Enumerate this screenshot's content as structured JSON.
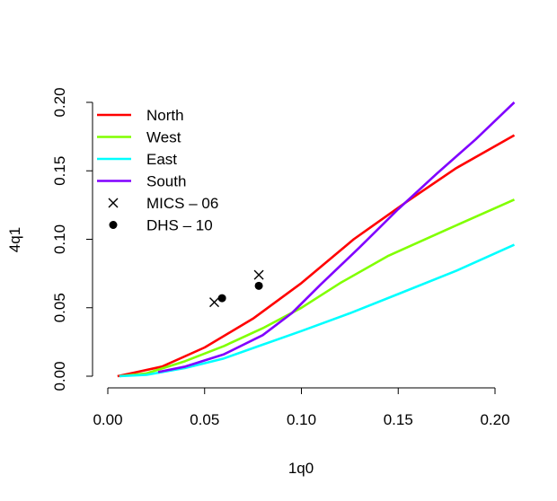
{
  "chart_data": {
    "type": "line",
    "title": "",
    "xlabel": "1q0",
    "ylabel": "4q1",
    "xlim": [
      0.0,
      0.21
    ],
    "ylim": [
      0.0,
      0.2
    ],
    "x_ticks": [
      "0.00",
      "0.05",
      "0.10",
      "0.15",
      "0.20"
    ],
    "y_ticks": [
      "0.00",
      "0.05",
      "0.10",
      "0.15",
      "0.20"
    ],
    "grid": false,
    "legend_position": "top-left",
    "series": [
      {
        "name": "North",
        "color": "#ff0000",
        "points": [
          [
            0.005,
            0.0
          ],
          [
            0.015,
            0.003
          ],
          [
            0.028,
            0.007
          ],
          [
            0.05,
            0.021
          ],
          [
            0.075,
            0.042
          ],
          [
            0.1,
            0.068
          ],
          [
            0.127,
            0.1
          ],
          [
            0.155,
            0.128
          ],
          [
            0.18,
            0.152
          ],
          [
            0.21,
            0.176
          ]
        ]
      },
      {
        "name": "West",
        "color": "#80ff00",
        "points": [
          [
            0.006,
            0.0
          ],
          [
            0.02,
            0.002
          ],
          [
            0.04,
            0.011
          ],
          [
            0.06,
            0.022
          ],
          [
            0.08,
            0.035
          ],
          [
            0.1,
            0.05
          ],
          [
            0.12,
            0.068
          ],
          [
            0.145,
            0.088
          ],
          [
            0.175,
            0.107
          ],
          [
            0.21,
            0.129
          ]
        ]
      },
      {
        "name": "East",
        "color": "#00ffff",
        "points": [
          [
            0.006,
            0.0
          ],
          [
            0.02,
            0.001
          ],
          [
            0.04,
            0.006
          ],
          [
            0.06,
            0.013
          ],
          [
            0.08,
            0.023
          ],
          [
            0.1,
            0.033
          ],
          [
            0.125,
            0.046
          ],
          [
            0.15,
            0.06
          ],
          [
            0.18,
            0.077
          ],
          [
            0.21,
            0.096
          ]
        ]
      },
      {
        "name": "South",
        "color": "#8000ff",
        "points": [
          [
            0.026,
            0.003
          ],
          [
            0.04,
            0.007
          ],
          [
            0.06,
            0.016
          ],
          [
            0.08,
            0.03
          ],
          [
            0.095,
            0.046
          ],
          [
            0.11,
            0.067
          ],
          [
            0.13,
            0.094
          ],
          [
            0.15,
            0.122
          ],
          [
            0.17,
            0.148
          ],
          [
            0.19,
            0.173
          ],
          [
            0.21,
            0.2
          ]
        ]
      }
    ],
    "markers": [
      {
        "name": "MICS – 06",
        "symbol": "cross",
        "color": "#000000",
        "points": [
          [
            0.055,
            0.054
          ],
          [
            0.078,
            0.074
          ]
        ]
      },
      {
        "name": "DHS – 10",
        "symbol": "dot",
        "color": "#000000",
        "points": [
          [
            0.059,
            0.057
          ],
          [
            0.078,
            0.066
          ]
        ]
      }
    ]
  }
}
